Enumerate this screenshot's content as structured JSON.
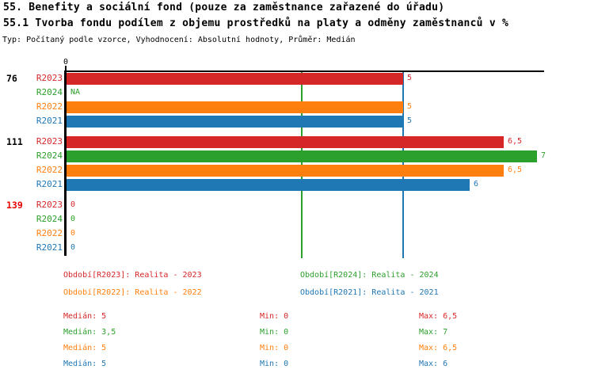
{
  "header": {
    "title_line1": "55. Benefity a sociální fond (pouze za zaměstnance zařazené do úřadu)",
    "title_line2": "55.1 Tvorba fondu podílem z objemu prostředků na platy a odměny zaměstnanců v %",
    "meta_line": "Typ: Počítaný podle vzorce, Vyhodnocení: Absolutní hodnoty, Průměr: Medián"
  },
  "colors": {
    "R2023": "#d62728",
    "R2024": "#2ca02c",
    "R2022": "#ff7f0e",
    "R2021": "#1f77b4",
    "group_label": "#000000",
    "group_label_highlight": "#e60000",
    "axis": "#000000"
  },
  "chart_data": {
    "type": "bar",
    "orientation": "horizontal",
    "value_unit": "%",
    "axis": {
      "tick_labels": [
        "0"
      ],
      "min": 0,
      "max": 7.1,
      "grid": false
    },
    "series_order": [
      "R2023",
      "R2024",
      "R2022",
      "R2021"
    ],
    "groups": [
      {
        "label": "76",
        "highlight": false,
        "bars": [
          {
            "series": "R2023",
            "value": 5,
            "display": "5"
          },
          {
            "series": "R2024",
            "value": null,
            "display": "NA"
          },
          {
            "series": "R2022",
            "value": 5,
            "display": "5"
          },
          {
            "series": "R2021",
            "value": 5,
            "display": "5"
          }
        ]
      },
      {
        "label": "111",
        "highlight": false,
        "bars": [
          {
            "series": "R2023",
            "value": 6.5,
            "display": "6,5"
          },
          {
            "series": "R2024",
            "value": 7,
            "display": "7"
          },
          {
            "series": "R2022",
            "value": 6.5,
            "display": "6,5"
          },
          {
            "series": "R2021",
            "value": 6,
            "display": "6"
          }
        ]
      },
      {
        "label": "139",
        "highlight": true,
        "bars": [
          {
            "series": "R2023",
            "value": 0,
            "display": "0"
          },
          {
            "series": "R2024",
            "value": 0,
            "display": "0"
          },
          {
            "series": "R2022",
            "value": 0,
            "display": "0"
          },
          {
            "series": "R2021",
            "value": 0,
            "display": "0"
          }
        ]
      }
    ],
    "reference_lines": [
      {
        "series": "R2024",
        "value": 3.5
      },
      {
        "series": "R2021",
        "value": 5
      }
    ]
  },
  "legend": {
    "items": [
      {
        "series": "R2023",
        "text": "Období[R2023]: Realita - 2023"
      },
      {
        "series": "R2024",
        "text": "Období[R2024]: Realita - 2024"
      },
      {
        "series": "R2022",
        "text": "Období[R2022]: Realita - 2022"
      },
      {
        "series": "R2021",
        "text": "Období[R2021]: Realita - 2021"
      }
    ]
  },
  "stats": {
    "rows": [
      {
        "series": "R2023",
        "median": "Medián: 5",
        "min": "Min: 0",
        "max": "Max: 6,5"
      },
      {
        "series": "R2024",
        "median": "Medián: 3,5",
        "min": "Min: 0",
        "max": "Max: 7"
      },
      {
        "series": "R2022",
        "median": "Medián: 5",
        "min": "Min: 0",
        "max": "Max: 6,5"
      },
      {
        "series": "R2021",
        "median": "Medián: 5",
        "min": "Min: 0",
        "max": "Max: 6"
      }
    ]
  }
}
